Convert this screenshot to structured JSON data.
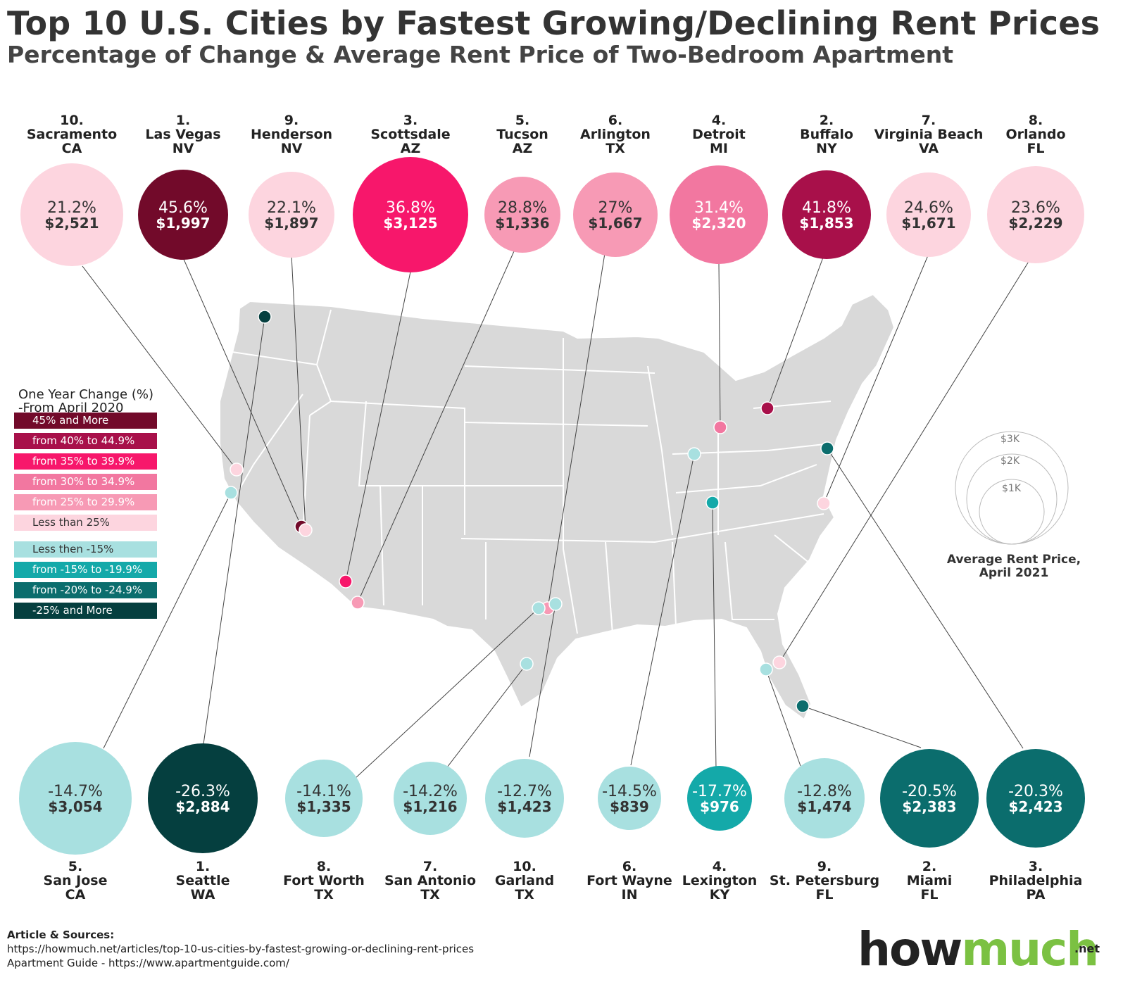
{
  "header": {
    "title": "Top 10 U.S. Cities by Fastest Growing/Declining Rent Prices",
    "subtitle": "Percentage of Change & Average Rent Price of Two-Bedroom Apartment"
  },
  "growing_cities": [
    {
      "rank": "10.",
      "city": "Sacramento",
      "state": "CA",
      "change": "21.2%",
      "rent": "$2,521",
      "color": "#fdd5df"
    },
    {
      "rank": "1.",
      "city": "Las Vegas",
      "state": "NV",
      "change": "45.6%",
      "rent": "$1,997",
      "color": "#720a2a"
    },
    {
      "rank": "9.",
      "city": "Henderson",
      "state": "NV",
      "change": "22.1%",
      "rent": "$1,897",
      "color": "#fdd5df"
    },
    {
      "rank": "3.",
      "city": "Scottsdale",
      "state": "AZ",
      "change": "36.8%",
      "rent": "$3,125",
      "color": "#f7176b"
    },
    {
      "rank": "5.",
      "city": "Tucson",
      "state": "AZ",
      "change": "28.8%",
      "rent": "$1,336",
      "color": "#f79ab5"
    },
    {
      "rank": "6.",
      "city": "Arlington",
      "state": "TX",
      "change": "27%",
      "rent": "$1,667",
      "color": "#f79ab5"
    },
    {
      "rank": "4.",
      "city": "Detroit",
      "state": "MI",
      "change": "31.4%",
      "rent": "$2,320",
      "color": "#f277a0"
    },
    {
      "rank": "2.",
      "city": "Buffalo",
      "state": "NY",
      "change": "41.8%",
      "rent": "$1,853",
      "color": "#a8104a"
    },
    {
      "rank": "7.",
      "city": "Virginia Beach",
      "state": "VA",
      "change": "24.6%",
      "rent": "$1,671",
      "color": "#fdd5df"
    },
    {
      "rank": "8.",
      "city": "Orlando",
      "state": "FL",
      "change": "23.6%",
      "rent": "$2,229",
      "color": "#fdd5df"
    }
  ],
  "declining_cities": [
    {
      "rank": "5.",
      "city": "San Jose",
      "state": "CA",
      "change": "-14.7%",
      "rent": "$3,054",
      "color": "#a8e0e0"
    },
    {
      "rank": "1.",
      "city": "Seattle",
      "state": "WA",
      "change": "-26.3%",
      "rent": "$2,884",
      "color": "#053f3f"
    },
    {
      "rank": "8.",
      "city": "Fort Worth",
      "state": "TX",
      "change": "-14.1%",
      "rent": "$1,335",
      "color": "#a8e0e0"
    },
    {
      "rank": "7.",
      "city": "San Antonio",
      "state": "TX",
      "change": "-14.2%",
      "rent": "$1,216",
      "color": "#a8e0e0"
    },
    {
      "rank": "10.",
      "city": "Garland",
      "state": "TX",
      "change": "-12.7%",
      "rent": "$1,423",
      "color": "#a8e0e0"
    },
    {
      "rank": "6.",
      "city": "Fort Wayne",
      "state": "IN",
      "change": "-14.5%",
      "rent": "$839",
      "color": "#a8e0e0"
    },
    {
      "rank": "4.",
      "city": "Lexington",
      "state": "KY",
      "change": "-17.7%",
      "rent": "$976",
      "color": "#14a9a9"
    },
    {
      "rank": "9.",
      "city": "St. Petersburg",
      "state": "FL",
      "change": "-12.8%",
      "rent": "$1,474",
      "color": "#a8e0e0"
    },
    {
      "rank": "2.",
      "city": "Miami",
      "state": "FL",
      "change": "-20.5%",
      "rent": "$2,383",
      "color": "#0b6d6d"
    },
    {
      "rank": "3.",
      "city": "Philadelphia",
      "state": "PA",
      "change": "-20.3%",
      "rent": "$2,423",
      "color": "#0b6d6d"
    }
  ],
  "legend": {
    "title_line1": "One Year Change (%)",
    "title_line2": "-From April 2020",
    "items": [
      {
        "label": "45% and More",
        "color": "#720a2a"
      },
      {
        "label": "from 40% to 44.9%",
        "color": "#a8104a"
      },
      {
        "label": "from 35% to 39.9%",
        "color": "#f7176b"
      },
      {
        "label": "from 30% to 34.9%",
        "color": "#f277a0"
      },
      {
        "label": "from 25% to 29.9%",
        "color": "#f79ab5"
      },
      {
        "label": "Less than 25%",
        "color": "#fdd5df"
      },
      {
        "label": "Less then -15%",
        "color": "#a8e0e0"
      },
      {
        "label": "from -15% to -19.9%",
        "color": "#14a9a9"
      },
      {
        "label": "from -20% to -24.9%",
        "color": "#0b6d6d"
      },
      {
        "label": "-25% and More",
        "color": "#053f3f"
      }
    ]
  },
  "size_legend": {
    "labels": [
      "$3K",
      "$2K",
      "$1K"
    ],
    "caption_line1": "Average Rent Price,",
    "caption_line2": "April 2021"
  },
  "sources": {
    "heading": "Article & Sources:",
    "line1": "https://howmuch.net/articles/top-10-us-cities-by-fastest-growing-or-declining-rent-prices",
    "line2": "Apartment Guide - https://www.apartmentguide.com/"
  },
  "brand": {
    "how": "how",
    "much": "much",
    "net": ".net"
  }
}
